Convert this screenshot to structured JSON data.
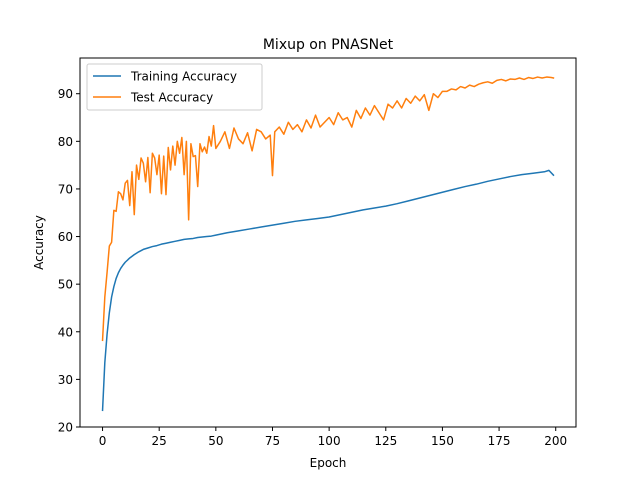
{
  "chart_data": {
    "type": "line",
    "title": "Mixup on PNASNet",
    "xlabel": "Epoch",
    "ylabel": "Accuracy",
    "xlim": [
      -9.95,
      208.95
    ],
    "ylim": [
      20,
      97.5
    ],
    "xticks": [
      0,
      25,
      50,
      75,
      100,
      125,
      150,
      175,
      200
    ],
    "yticks": [
      20,
      30,
      40,
      50,
      60,
      70,
      80,
      90
    ],
    "legend_position": "top-left",
    "grid": false,
    "series": [
      {
        "name": "Training Accuracy",
        "color": "#1f77b4",
        "x": [
          0,
          1,
          2,
          3,
          4,
          5,
          6,
          7,
          8,
          9,
          10,
          12,
          14,
          16,
          18,
          20,
          22,
          24,
          26,
          28,
          30,
          32,
          34,
          36,
          38,
          40,
          42,
          44,
          46,
          48,
          50,
          55,
          60,
          65,
          70,
          75,
          80,
          85,
          90,
          95,
          100,
          105,
          110,
          115,
          120,
          125,
          130,
          135,
          140,
          145,
          150,
          155,
          160,
          165,
          170,
          175,
          180,
          185,
          190,
          195,
          197,
          199
        ],
        "values": [
          23.5,
          33.5,
          39.5,
          44.0,
          47.3,
          49.5,
          51.2,
          52.4,
          53.3,
          54.0,
          54.6,
          55.5,
          56.2,
          56.8,
          57.3,
          57.6,
          57.9,
          58.1,
          58.4,
          58.6,
          58.8,
          59.0,
          59.2,
          59.4,
          59.5,
          59.6,
          59.8,
          59.9,
          60.0,
          60.1,
          60.3,
          60.8,
          61.2,
          61.6,
          62.0,
          62.4,
          62.8,
          63.2,
          63.5,
          63.8,
          64.1,
          64.6,
          65.1,
          65.6,
          66.0,
          66.4,
          66.9,
          67.5,
          68.1,
          68.7,
          69.3,
          69.9,
          70.5,
          71.0,
          71.6,
          72.1,
          72.6,
          73.0,
          73.3,
          73.6,
          73.9,
          72.9
        ]
      },
      {
        "name": "Test Accuracy",
        "color": "#ff7f0e",
        "x": [
          0,
          1,
          2,
          3,
          4,
          5,
          6,
          7,
          8,
          9,
          10,
          11,
          12,
          13,
          14,
          15,
          16,
          17,
          18,
          19,
          20,
          21,
          22,
          23,
          24,
          25,
          26,
          27,
          28,
          29,
          30,
          31,
          32,
          33,
          34,
          35,
          36,
          37,
          38,
          39,
          40,
          41,
          42,
          43,
          44,
          45,
          46,
          47,
          48,
          49,
          50,
          52,
          54,
          56,
          58,
          60,
          62,
          64,
          66,
          68,
          70,
          72,
          74,
          75,
          76,
          78,
          80,
          82,
          84,
          86,
          88,
          90,
          92,
          94,
          96,
          98,
          100,
          102,
          104,
          106,
          108,
          110,
          112,
          114,
          116,
          118,
          120,
          122,
          124,
          126,
          128,
          130,
          132,
          134,
          136,
          138,
          140,
          142,
          144,
          146,
          148,
          150,
          152,
          154,
          156,
          158,
          160,
          162,
          164,
          166,
          168,
          170,
          172,
          174,
          176,
          178,
          180,
          182,
          184,
          186,
          188,
          190,
          192,
          194,
          196,
          198,
          199
        ],
        "values": [
          38.2,
          47.3,
          52.5,
          58.0,
          58.8,
          65.5,
          65.3,
          69.4,
          69.0,
          67.7,
          71.2,
          71.8,
          66.5,
          73.6,
          64.6,
          75.0,
          72.0,
          76.5,
          75.4,
          71.5,
          76.6,
          69.2,
          77.5,
          76.5,
          73.0,
          77.1,
          69.0,
          76.9,
          68.8,
          78.7,
          74.0,
          79.0,
          75.0,
          80.0,
          77.5,
          80.8,
          73.0,
          80.0,
          63.5,
          79.5,
          76.8,
          77.0,
          70.5,
          79.5,
          77.8,
          78.8,
          77.5,
          81.0,
          79.0,
          83.3,
          78.5,
          80.0,
          82.0,
          78.5,
          82.8,
          80.5,
          79.5,
          81.8,
          78.0,
          82.5,
          82.0,
          80.5,
          81.3,
          72.8,
          82.0,
          83.0,
          81.5,
          84.0,
          82.5,
          83.5,
          82.0,
          84.5,
          82.8,
          85.5,
          83.0,
          84.0,
          85.0,
          83.5,
          86.0,
          84.5,
          85.0,
          83.0,
          86.5,
          84.8,
          87.0,
          85.5,
          87.5,
          86.0,
          84.5,
          87.8,
          87.0,
          88.5,
          87.0,
          89.0,
          88.0,
          89.5,
          88.5,
          89.8,
          86.5,
          90.0,
          89.2,
          90.5,
          90.5,
          91.0,
          90.8,
          91.5,
          91.2,
          91.8,
          91.5,
          92.0,
          92.3,
          92.5,
          92.2,
          92.8,
          93.0,
          92.7,
          93.1,
          93.0,
          93.3,
          93.0,
          93.4,
          93.2,
          93.5,
          93.3,
          93.5,
          93.4,
          93.3
        ]
      }
    ]
  }
}
